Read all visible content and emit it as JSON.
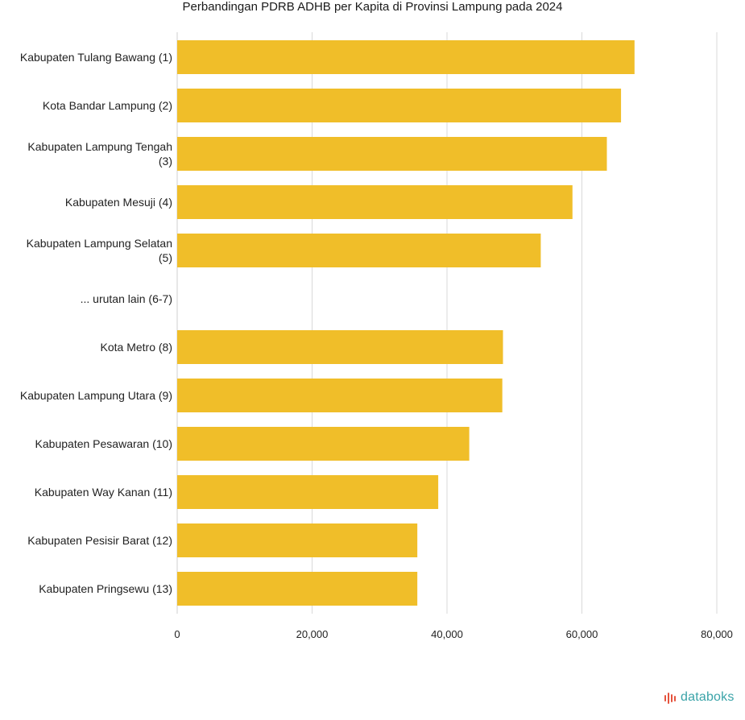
{
  "title": "Perbandingan PDRB ADHB per Kapita di Provinsi Lampung pada 2024",
  "brand": {
    "name": "databoks",
    "icon": "databoks-logo-icon",
    "color": "#3aa3a8",
    "accent": "#e5533d"
  },
  "colors": {
    "bar": "#f0be29",
    "grid": "#d9d9d9"
  },
  "chart_data": {
    "type": "bar",
    "orientation": "horizontal",
    "categories": [
      "Kabupaten Tulang Bawang (1)",
      "Kota Bandar Lampung (2)",
      "Kabupaten Lampung Tengah (3)",
      "Kabupaten Mesuji (4)",
      "Kabupaten Lampung Selatan (5)",
      "... urutan lain (6-7)",
      "Kota Metro (8)",
      "Kabupaten Lampung Utara (9)",
      "Kabupaten Pesawaran (10)",
      "Kabupaten Way Kanan (11)",
      "Kabupaten Pesisir Barat (12)",
      "Kabupaten Pringsewu (13)"
    ],
    "category_lines": [
      [
        "Kabupaten Tulang Bawang (1)"
      ],
      [
        "Kota Bandar Lampung (2)"
      ],
      [
        "Kabupaten Lampung Tengah",
        "(3)"
      ],
      [
        "Kabupaten Mesuji (4)"
      ],
      [
        "Kabupaten Lampung Selatan",
        "(5)"
      ],
      [
        "... urutan lain (6-7)"
      ],
      [
        "Kota Metro (8)"
      ],
      [
        "Kabupaten Lampung Utara (9)"
      ],
      [
        "Kabupaten Pesawaran (10)"
      ],
      [
        "Kabupaten Way Kanan (11)"
      ],
      [
        "Kabupaten Pesisir Barat (12)"
      ],
      [
        "Kabupaten Pringsewu (13)"
      ]
    ],
    "values": [
      67800,
      65800,
      63700,
      58600,
      53900,
      null,
      48300,
      48200,
      43300,
      38700,
      35600,
      35600
    ],
    "xlim": [
      0,
      80000
    ],
    "xticks": [
      0,
      20000,
      40000,
      60000,
      80000
    ],
    "xtick_labels": [
      "0",
      "20,000",
      "40,000",
      "60,000",
      "80,000"
    ],
    "grid": true,
    "legend": "none"
  }
}
